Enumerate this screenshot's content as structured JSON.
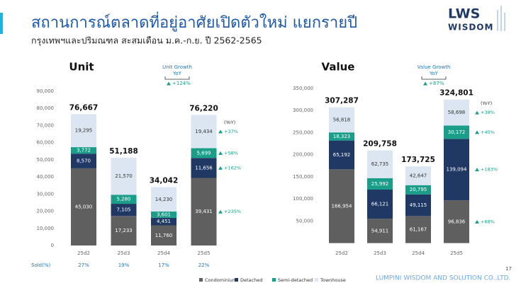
{
  "title": "สถานการณ์ตลาดที่อยู่อาศัยเปิดตัวใหม่ แยกรายปี",
  "subtitle": "กรุงเทพฯและปริมณฑล สะสมเดือน ม.ค.-ก.ย. ปี 2562-2565",
  "logo": [
    "LWS",
    "WISDOM"
  ],
  "footer": "LUMPINI WISDOM AND SOLUTION CO.,LTD.",
  "page_number": "17",
  "chart_data": [
    {
      "type": "bar",
      "stacked": true,
      "title": "Unit",
      "categories": [
        "25d2",
        "25d3",
        "25d4",
        "25d5"
      ],
      "ylim": [
        0,
        90000
      ],
      "yticks": [
        0,
        {
          "value": 10000,
          "label": "10,000"
        },
        {
          "value": 20000,
          "label": "20,000"
        },
        {
          "value": 30000,
          "label": "30,000"
        },
        {
          "value": 40000,
          "label": "40,000"
        },
        {
          "value": 50000,
          "label": "50,000"
        },
        {
          "value": 60000,
          "label": "60,000"
        },
        {
          "value": 70000,
          "label": "70,000"
        },
        {
          "value": 80000,
          "label": "80,000"
        },
        {
          "value": 90000,
          "label": "90,000"
        }
      ],
      "series": [
        {
          "name": "Condominium",
          "color": "#5f5f5f",
          "values": [
            45030,
            17233,
            11760,
            39431
          ],
          "value_labels": [
            "45,030",
            "17,233",
            "11,760",
            "39,431"
          ],
          "yoy": "+235%"
        },
        {
          "name": "Detached",
          "color": "#1f3864",
          "values": [
            8570,
            7105,
            4451,
            11656
          ],
          "value_labels": [
            "8,570",
            "7,105",
            "4,451",
            "11,656"
          ],
          "yoy": "+162%"
        },
        {
          "name": "Semi-detached",
          "color": "#1a9e8a",
          "values": [
            3772,
            5280,
            3601,
            5699
          ],
          "value_labels": [
            "3,772",
            "5,280",
            "3,601",
            "5,699"
          ],
          "yoy": "+58%"
        },
        {
          "name": "Townhouse",
          "color": "#dce6f2",
          "values": [
            19295,
            21570,
            14230,
            19434
          ],
          "value_labels": [
            "19,295",
            "21,570",
            "14,230",
            "19,434"
          ],
          "yoy": "+37%"
        }
      ],
      "totals": [
        "76,667",
        "51,188",
        "34,042",
        "76,220"
      ],
      "yoy_label": "(YoY)",
      "growth": {
        "label": [
          "Unit Growth",
          "YoY"
        ],
        "value": "+124%"
      },
      "sold_label": "Sold(%)",
      "sold": [
        "27%",
        "19%",
        "17%",
        "22%"
      ]
    },
    {
      "type": "bar",
      "stacked": true,
      "title": "Value",
      "categories": [
        "25d2",
        "25d3",
        "25d4",
        "25d5"
      ],
      "ylim": [
        0,
        350000
      ],
      "yticks": [
        {
          "value": 50000,
          "label": "50,000"
        },
        {
          "value": 100000,
          "label": "100,000"
        },
        {
          "value": 150000,
          "label": "150,000"
        },
        {
          "value": 200000,
          "label": "200,000"
        },
        {
          "value": 250000,
          "label": "250,000"
        },
        {
          "value": 300000,
          "label": "300,000"
        },
        {
          "value": 350000,
          "label": "350,000"
        }
      ],
      "series": [
        {
          "color": "#5f5f5f",
          "values": [
            166954,
            54911,
            61167,
            96836
          ],
          "value_labels": [
            "166,954",
            "54,911",
            "61,167",
            "96,836"
          ],
          "yoy": "+68%"
        },
        {
          "color": "#1f3864",
          "values": [
            65192,
            66121,
            49115,
            139094
          ],
          "value_labels": [
            "65,192",
            "66,121",
            "49,115",
            "139,094"
          ],
          "yoy": "+183%"
        },
        {
          "color": "#1a9e8a",
          "values": [
            18323,
            25992,
            20795,
            30172
          ],
          "value_labels": [
            "18,323",
            "25,992",
            "20,795",
            "30,172"
          ],
          "yoy": "+45%"
        },
        {
          "color": "#dce6f2",
          "values": [
            56818,
            62735,
            42647,
            58698
          ],
          "value_labels": [
            "56,818",
            "62,735",
            "42,647",
            "58,698"
          ],
          "yoy": "+38%"
        }
      ],
      "totals": [
        "307,287",
        "209,758",
        "173,725",
        "324,801"
      ],
      "yoy_label": "(YoY)",
      "growth": {
        "label": [
          "Value Growth",
          "YoY"
        ],
        "value": "+87%"
      }
    }
  ]
}
